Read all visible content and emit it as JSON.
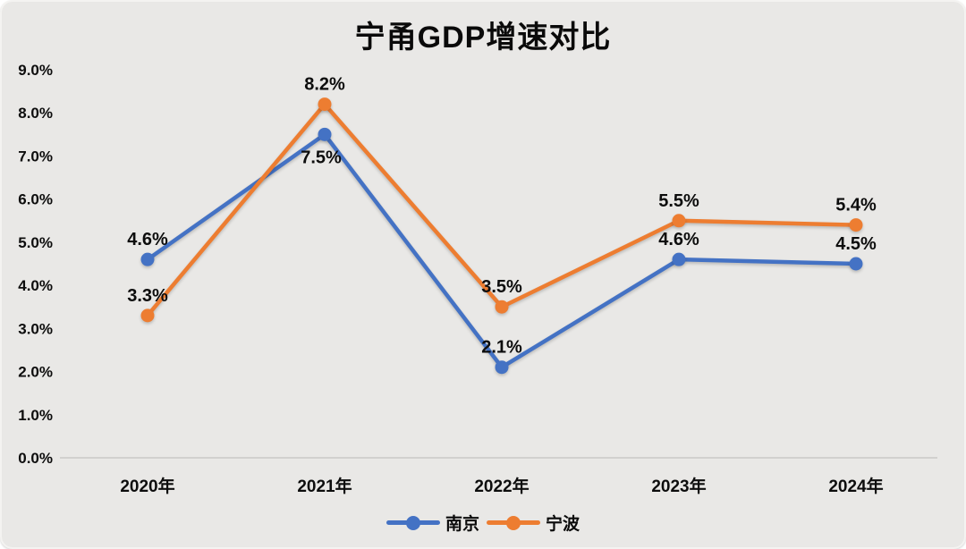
{
  "colors": {
    "nanjing": "#4472C4",
    "ningbo": "#ED7D31",
    "background": "#e9e8e6",
    "text": "#0d0d0d",
    "axis_line": "#c9c8c6"
  },
  "chart_data": {
    "type": "line",
    "title": "宁甬GDP增速对比",
    "xlabel": "",
    "ylabel": "",
    "categories": [
      "2020年",
      "2021年",
      "2022年",
      "2023年",
      "2024年"
    ],
    "series": [
      {
        "name": "南京",
        "color_key": "nanjing",
        "values": [
          4.6,
          7.5,
          2.1,
          4.6,
          4.5
        ],
        "labels": [
          "4.6%",
          "7.5%",
          "2.1%",
          "4.6%",
          "4.5%"
        ],
        "label_positions": [
          "above",
          "below",
          "above",
          "above",
          "above"
        ]
      },
      {
        "name": "宁波",
        "color_key": "ningbo",
        "values": [
          3.3,
          8.2,
          3.5,
          5.5,
          5.4
        ],
        "labels": [
          "3.3%",
          "8.2%",
          "3.5%",
          "5.5%",
          "5.4%"
        ],
        "label_positions": [
          "above",
          "above",
          "above",
          "above",
          "above"
        ]
      }
    ],
    "ylim": [
      0,
      9
    ],
    "ytick_step": 1,
    "ytick_labels": [
      "0.0%",
      "1.0%",
      "2.0%",
      "3.0%",
      "4.0%",
      "5.0%",
      "6.0%",
      "7.0%",
      "8.0%",
      "9.0%"
    ],
    "grid": false,
    "legend_position": "bottom"
  }
}
